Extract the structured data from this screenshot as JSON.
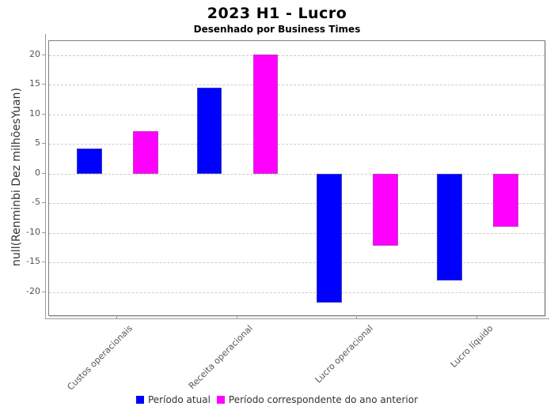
{
  "chart_data": {
    "type": "bar",
    "title": "2023 H1 - Lucro",
    "subtitle": "Desenhado por Business Times",
    "ylabel": "null(Renminbi Dez milhõesYuan)",
    "xlabel": "",
    "categories": [
      "Custos operacionais",
      "Receita operacional",
      "Lucro operacional",
      "Lucro líquido"
    ],
    "series": [
      {
        "name": "Período atual",
        "color": "#0000ff",
        "values": [
          4.2,
          14.5,
          -21.8,
          -18.0
        ]
      },
      {
        "name": "Período correspondente do ano anterior",
        "color": "#ff00ff",
        "values": [
          7.2,
          20.1,
          -12.1,
          -9.0
        ]
      }
    ],
    "ylim": [
      -23.9,
      22.4
    ],
    "yticks": [
      20,
      15,
      10,
      5,
      0,
      -5,
      -10,
      -15,
      -20
    ],
    "grid": "horizontal-dashed",
    "gridline_color": "#cccccc",
    "axis_color": "#999999",
    "legend_position": "bottom"
  }
}
